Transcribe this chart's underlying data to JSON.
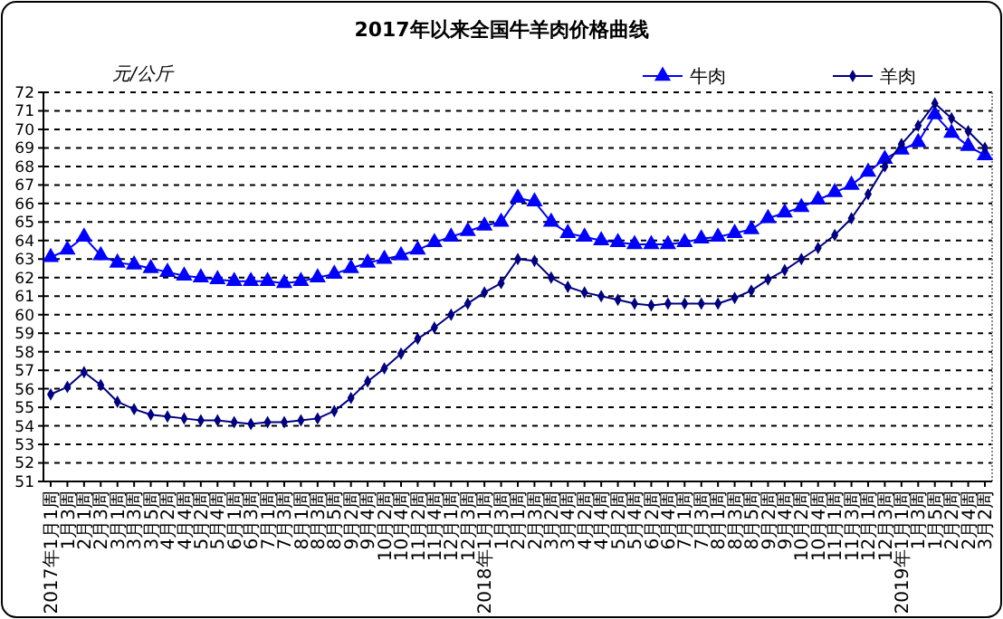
{
  "chart_data": {
    "type": "line",
    "title": "2017年以来全国牛羊肉价格曲线",
    "ylabel": "元/公斤",
    "categories": [
      "2017年1月1周",
      "1月3周",
      "2月1周",
      "2月3周",
      "3月1周",
      "3月3周",
      "3月5周",
      "4月2周",
      "4月4周",
      "5月2周",
      "5月4周",
      "6月1周",
      "6月3周",
      "7月1周",
      "7月3周",
      "8月1周",
      "8月3周",
      "8月5周",
      "9月2周",
      "9月4周",
      "10月2周",
      "10月4周",
      "11月2周",
      "11月4周",
      "12月1周",
      "12月3周",
      "2018年1月1周",
      "1月3周",
      "2月1周",
      "2月3周",
      "3月2周",
      "3月4周",
      "4月2周",
      "4月4周",
      "5月2周",
      "5月4周",
      "6月2周",
      "6月4周",
      "7月1周",
      "7月3周",
      "8月1周",
      "8月3周",
      "8月5周",
      "9月2周",
      "9月4周",
      "10月2周",
      "10月4周",
      "11月1周",
      "11月3周",
      "12月1周",
      "12月3周",
      "2019年1月1周",
      "1月3周",
      "1月5周",
      "2月2周",
      "2月4周",
      "3月2周"
    ],
    "series": [
      {
        "name": "牛肉",
        "color": "#0000ff",
        "marker": "triangle",
        "values": [
          63.1,
          63.5,
          64.2,
          63.2,
          62.8,
          62.7,
          62.5,
          62.3,
          62.1,
          62.0,
          61.9,
          61.8,
          61.8,
          61.8,
          61.7,
          61.8,
          62.0,
          62.2,
          62.5,
          62.8,
          63.0,
          63.2,
          63.5,
          63.9,
          64.2,
          64.5,
          64.8,
          65.0,
          66.3,
          66.1,
          65.0,
          64.4,
          64.2,
          64.0,
          63.9,
          63.8,
          63.8,
          63.8,
          63.9,
          64.1,
          64.2,
          64.4,
          64.6,
          65.2,
          65.5,
          65.8,
          66.2,
          66.6,
          67.0,
          67.7,
          68.4,
          68.9,
          69.3,
          70.8,
          69.8,
          69.1,
          68.6
        ]
      },
      {
        "name": "羊肉",
        "color": "#000080",
        "marker": "diamond",
        "values": [
          55.7,
          56.1,
          56.9,
          56.2,
          55.3,
          54.9,
          54.6,
          54.5,
          54.4,
          54.3,
          54.3,
          54.2,
          54.1,
          54.2,
          54.2,
          54.3,
          54.4,
          54.8,
          55.5,
          56.4,
          57.1,
          57.9,
          58.7,
          59.3,
          60.0,
          60.6,
          61.2,
          61.7,
          63.0,
          62.9,
          62.0,
          61.5,
          61.2,
          61.0,
          60.8,
          60.6,
          60.5,
          60.6,
          60.6,
          60.6,
          60.6,
          60.9,
          61.3,
          61.9,
          62.4,
          63.0,
          63.6,
          64.3,
          65.2,
          66.5,
          68.0,
          69.2,
          70.2,
          71.4,
          70.6,
          69.9,
          69.0
        ]
      }
    ],
    "ylim": [
      51,
      72
    ],
    "yticks": [
      51,
      52,
      53,
      54,
      55,
      56,
      57,
      58,
      59,
      60,
      61,
      62,
      63,
      64,
      65,
      66,
      67,
      68,
      69,
      70,
      71,
      72
    ],
    "grid": "y",
    "legend": "top right"
  }
}
